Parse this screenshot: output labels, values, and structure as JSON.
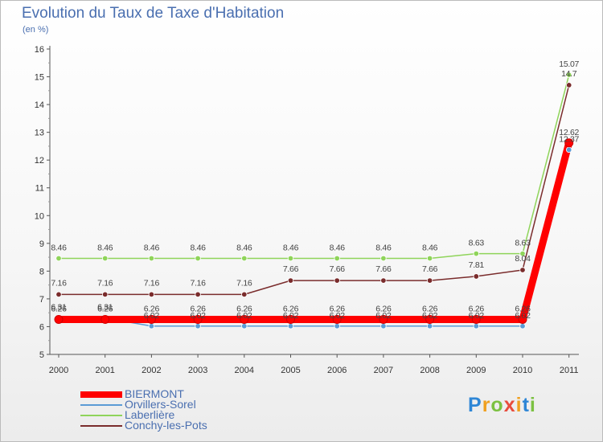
{
  "chart_data": {
    "type": "line",
    "title": "Evolution du Taux de Taxe d'Habitation",
    "subtitle": "(en %)",
    "xlabel": "",
    "ylabel": "",
    "ylim": [
      5,
      16
    ],
    "yticks": [
      "5",
      "6",
      "7",
      "8",
      "9",
      "10",
      "11",
      "12",
      "13",
      "14",
      "15",
      "16"
    ],
    "categories": [
      "2000",
      "2001",
      "2002",
      "2003",
      "2004",
      "2005",
      "2006",
      "2007",
      "2008",
      "2009",
      "2010",
      "2011"
    ],
    "series": [
      {
        "name": "BIERMONT",
        "color": "#ff0000",
        "values": [
          6.26,
          6.26,
          6.26,
          6.26,
          6.26,
          6.26,
          6.26,
          6.26,
          6.26,
          6.26,
          6.26,
          12.62
        ],
        "labels": [
          "6.26",
          "6.26",
          "6.26",
          "6.26",
          "6.26",
          "6.26",
          "6.26",
          "6.26",
          "6.26",
          "6.26",
          "6.26",
          "12.62"
        ]
      },
      {
        "name": "Orvillers-Sorel",
        "color": "#5b9bd5",
        "values": [
          6.31,
          6.31,
          6.02,
          6.02,
          6.02,
          6.02,
          6.02,
          6.02,
          6.02,
          6.02,
          6.02,
          12.37
        ],
        "labels": [
          "6.31",
          "6.31",
          "6.02",
          "6.02",
          "6.02",
          "6.02",
          "6.02",
          "6.02",
          "6.02",
          "6.02",
          "6.02",
          "12.37"
        ]
      },
      {
        "name": "Laberlière",
        "color": "#8fd45a",
        "values": [
          8.46,
          8.46,
          8.46,
          8.46,
          8.46,
          8.46,
          8.46,
          8.46,
          8.46,
          8.63,
          8.63,
          15.07
        ],
        "labels": [
          "8.46",
          "8.46",
          "8.46",
          "8.46",
          "8.46",
          "8.46",
          "8.46",
          "8.46",
          "8.46",
          "8.63",
          "8.63",
          "15.07"
        ]
      },
      {
        "name": "Conchy-les-Pots",
        "color": "#7a2c2c",
        "values": [
          7.16,
          7.16,
          7.16,
          7.16,
          7.16,
          7.66,
          7.66,
          7.66,
          7.66,
          7.81,
          8.04,
          14.7
        ],
        "labels": [
          "7.16",
          "7.16",
          "7.16",
          "7.16",
          "7.16",
          "7.66",
          "7.66",
          "7.66",
          "7.66",
          "7.81",
          "8.04",
          "14.7"
        ]
      }
    ],
    "grid": false,
    "legend_position": "bottom-left"
  },
  "brand": {
    "letters": [
      "P",
      "r",
      "o",
      "x",
      "i",
      "t",
      "i"
    ],
    "colors": [
      "#2e86d6",
      "#f0a020",
      "#7cc142",
      "#e84c3d",
      "#f0a020",
      "#2e86d6",
      "#7cc142"
    ]
  }
}
